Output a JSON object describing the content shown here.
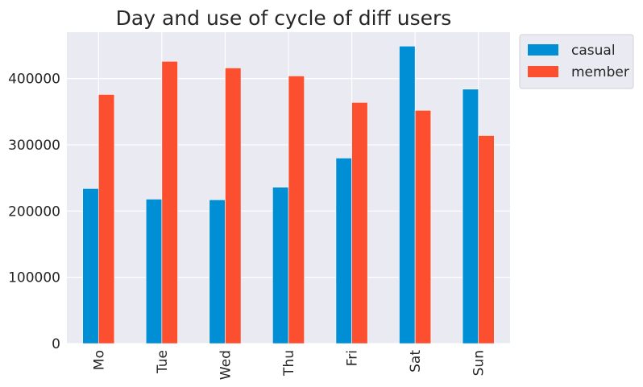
{
  "chart_data": {
    "type": "bar",
    "title": "Day and use of cycle of diff users",
    "xlabel": "",
    "ylabel": "",
    "categories": [
      "Mo",
      "Tue",
      "Wed",
      "Thu",
      "Fri",
      "Sat",
      "Sun"
    ],
    "series": [
      {
        "name": "casual",
        "color": "#008fd5",
        "values": [
          234000,
          218000,
          217000,
          236000,
          280000,
          449000,
          384000
        ]
      },
      {
        "name": "member",
        "color": "#fc4f30",
        "values": [
          376000,
          426000,
          416000,
          404000,
          364000,
          352000,
          314000
        ]
      }
    ],
    "ylim": [
      0,
      470000
    ],
    "yticks": [
      0,
      100000,
      200000,
      300000,
      400000
    ],
    "ytick_labels": [
      "0",
      "100000",
      "200000",
      "300000",
      "400000"
    ],
    "grid": true,
    "legend_position": "outside-top-right",
    "colors": {
      "background": "#eaeaf2",
      "grid": "#ffffff"
    }
  }
}
